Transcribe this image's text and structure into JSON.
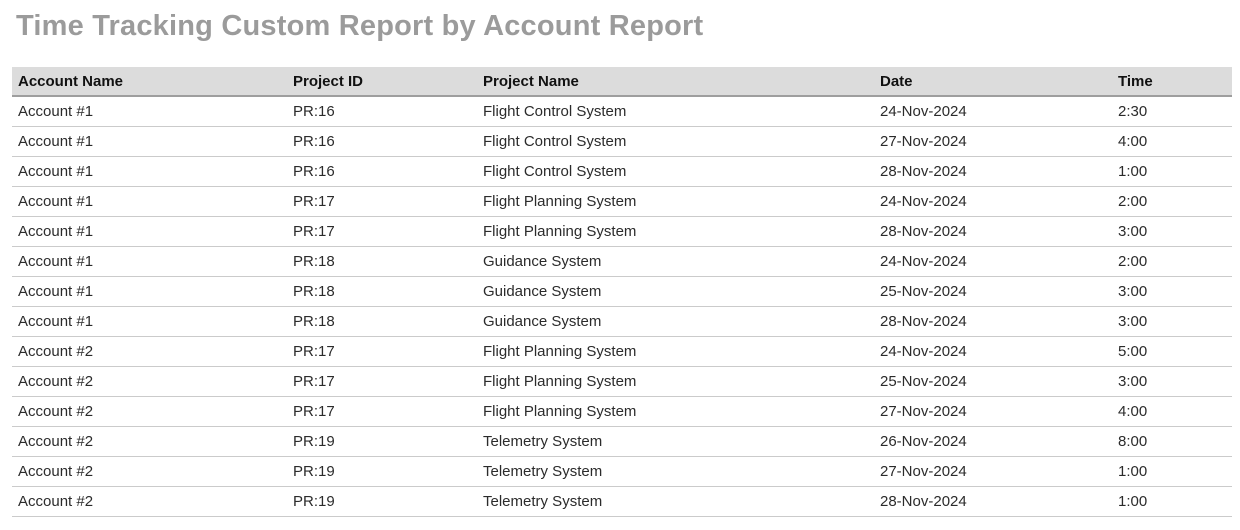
{
  "page": {
    "title": "Time Tracking Custom Report by Account Report"
  },
  "colors": {
    "title_text": "#9b9b9b",
    "header_background": "#dcdcdc",
    "header_text": "#111111",
    "header_border": "#9e9e9e",
    "row_border": "#cbcbcb",
    "body_text": "#2b2b2b",
    "page_background": "#ffffff"
  },
  "table": {
    "columns": [
      {
        "key": "account_name",
        "label": "Account Name"
      },
      {
        "key": "project_id",
        "label": "Project ID"
      },
      {
        "key": "project_name",
        "label": "Project Name"
      },
      {
        "key": "date",
        "label": "Date"
      },
      {
        "key": "time",
        "label": "Time"
      }
    ],
    "rows": [
      [
        "Account #1",
        "PR:16",
        "Flight Control System",
        "24-Nov-2024",
        "2:30"
      ],
      [
        "Account #1",
        "PR:16",
        "Flight Control System",
        "27-Nov-2024",
        "4:00"
      ],
      [
        "Account #1",
        "PR:16",
        "Flight Control System",
        "28-Nov-2024",
        "1:00"
      ],
      [
        "Account #1",
        "PR:17",
        "Flight Planning System",
        "24-Nov-2024",
        "2:00"
      ],
      [
        "Account #1",
        "PR:17",
        "Flight Planning System",
        "28-Nov-2024",
        "3:00"
      ],
      [
        "Account #1",
        "PR:18",
        "Guidance System",
        "24-Nov-2024",
        "2:00"
      ],
      [
        "Account #1",
        "PR:18",
        "Guidance System",
        "25-Nov-2024",
        "3:00"
      ],
      [
        "Account #1",
        "PR:18",
        "Guidance System",
        "28-Nov-2024",
        "3:00"
      ],
      [
        "Account #2",
        "PR:17",
        "Flight Planning System",
        "24-Nov-2024",
        "5:00"
      ],
      [
        "Account #2",
        "PR:17",
        "Flight Planning System",
        "25-Nov-2024",
        "3:00"
      ],
      [
        "Account #2",
        "PR:17",
        "Flight Planning System",
        "27-Nov-2024",
        "4:00"
      ],
      [
        "Account #2",
        "PR:19",
        "Telemetry System",
        "26-Nov-2024",
        "8:00"
      ],
      [
        "Account #2",
        "PR:19",
        "Telemetry System",
        "27-Nov-2024",
        "1:00"
      ],
      [
        "Account #2",
        "PR:19",
        "Telemetry System",
        "28-Nov-2024",
        "1:00"
      ]
    ]
  }
}
